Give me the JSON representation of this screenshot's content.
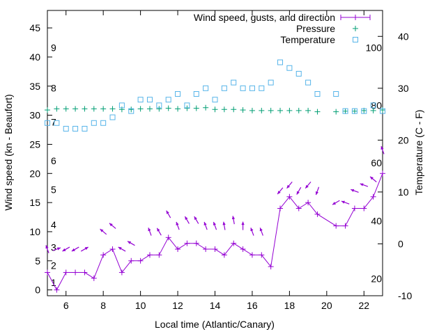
{
  "chart_data": {
    "type": "line",
    "xlabel": "Local time (Atlantic/Canary)",
    "ylabel_left": "Wind speed (kn - Beaufort)",
    "ylabel_right": "Temperature (C - F)",
    "xlim": [
      5,
      23
    ],
    "ylim_left": [
      -1,
      48
    ],
    "ylim_right": [
      -10,
      45
    ],
    "x_ticks": [
      6,
      8,
      10,
      12,
      14,
      16,
      18,
      20,
      22
    ],
    "y_ticks_left": [
      0,
      5,
      10,
      15,
      20,
      25,
      30,
      35,
      40,
      45
    ],
    "y_ticks_right": [
      -10,
      0,
      10,
      20,
      30,
      40
    ],
    "beaufort_labels": [
      {
        "label": "1",
        "value": 1.3
      },
      {
        "label": "2",
        "value": 4.2
      },
      {
        "label": "3",
        "value": 7.3
      },
      {
        "label": "4",
        "value": 11.2
      },
      {
        "label": "5",
        "value": 17.2
      },
      {
        "label": "6",
        "value": 22.2
      },
      {
        "label": "7",
        "value": 28.8
      },
      {
        "label": "8",
        "value": 34.7
      },
      {
        "label": "9",
        "value": 41.6
      }
    ],
    "fahrenheit_labels": [
      {
        "label": "20",
        "value": -6.7
      },
      {
        "label": "40",
        "value": 4.4
      },
      {
        "label": "60",
        "value": 15.6
      },
      {
        "label": "80",
        "value": 26.7
      },
      {
        "label": "100",
        "value": 37.8
      }
    ],
    "grid": false,
    "legend_position": "top-right",
    "series": [
      {
        "name": "Wind speed, gusts, and direction",
        "color": "#9400d3",
        "x": [
          5,
          5.5,
          6,
          6.5,
          7,
          7.5,
          8,
          8.5,
          9,
          9.5,
          10,
          10.5,
          11,
          11.5,
          12,
          12.5,
          13,
          13.5,
          14,
          14.5,
          15,
          15.5,
          16,
          16.5,
          17,
          17.5,
          18,
          18.5,
          19,
          19.5,
          20.5,
          21,
          21.5,
          22,
          22.5,
          23
        ],
        "values": [
          3,
          0,
          3,
          3,
          3,
          2,
          6,
          7,
          3,
          5,
          5,
          6,
          6,
          9,
          7,
          8,
          8,
          7,
          7,
          6,
          8,
          7,
          6,
          6,
          4,
          14,
          16,
          14,
          15,
          13,
          11,
          11,
          14,
          14,
          16,
          20
        ]
      },
      {
        "name": "Pressure",
        "color": "#009e73",
        "x": [
          5,
          5.5,
          6,
          6.5,
          7,
          7.5,
          8,
          8.5,
          9,
          9.5,
          10,
          10.5,
          11,
          11.5,
          12,
          12.5,
          13,
          13.5,
          14,
          14.5,
          15,
          15.5,
          16,
          16.5,
          17,
          17.5,
          18,
          18.5,
          19,
          19.5,
          20.5,
          21,
          21.5,
          22,
          22.5,
          23
        ],
        "values": [
          30.9,
          31.1,
          31.1,
          31.1,
          31.1,
          31.1,
          31.1,
          31.1,
          31.0,
          31.0,
          31.1,
          31.1,
          31.1,
          31.2,
          31.1,
          31.2,
          31.2,
          31.3,
          31.0,
          31.0,
          31.0,
          30.9,
          30.8,
          30.8,
          30.8,
          30.8,
          30.8,
          30.8,
          30.8,
          30.6,
          30.6,
          30.7,
          30.7,
          30.8,
          30.8,
          30.9
        ]
      },
      {
        "name": "Temperature",
        "color": "#56b4e9",
        "x": [
          5,
          5.5,
          6,
          6.5,
          7,
          7.5,
          8,
          8.5,
          9,
          9.5,
          10,
          10.5,
          11,
          11.5,
          12,
          12.5,
          13,
          13.5,
          14,
          14.5,
          15,
          15.5,
          16,
          16.5,
          17,
          17.5,
          18,
          18.5,
          19,
          19.5,
          20.5,
          21,
          21.5,
          22,
          22.5,
          23
        ],
        "values": [
          23.3,
          23.3,
          22.2,
          22.2,
          22.2,
          23.3,
          23.3,
          24.4,
          26.7,
          25.6,
          27.8,
          27.8,
          26.7,
          27.8,
          28.9,
          26.7,
          28.9,
          30.0,
          27.8,
          30.0,
          31.1,
          30.0,
          30.0,
          30.0,
          31.1,
          35.0,
          33.9,
          32.8,
          31.1,
          28.9,
          28.9,
          25.6,
          25.6,
          25.6,
          26.7,
          25.6
        ]
      }
    ],
    "wind_arrows": {
      "x": [
        5,
        5.5,
        6,
        6.5,
        7,
        8,
        8.5,
        9,
        9.5,
        10.5,
        11,
        11.5,
        12,
        12.5,
        13,
        13.5,
        14,
        14.5,
        15,
        15.5,
        16,
        16.5,
        17.5,
        18,
        18.5,
        19,
        19.5,
        20.5,
        21,
        21.5,
        22,
        22.5,
        23
      ],
      "y": [
        7,
        7,
        7,
        7,
        7,
        10,
        11,
        7,
        8,
        10,
        10,
        13,
        11,
        12,
        12,
        11,
        11,
        11,
        12,
        11,
        10,
        10,
        17,
        18,
        17,
        18,
        17,
        15,
        15,
        17,
        18,
        19,
        24
      ],
      "direction_deg": [
        200,
        110,
        300,
        300,
        120,
        230,
        230,
        240,
        240,
        200,
        210,
        210,
        200,
        210,
        210,
        200,
        200,
        190,
        190,
        180,
        200,
        200,
        320,
        320,
        330,
        320,
        340,
        300,
        250,
        250,
        250,
        230,
        200
      ]
    }
  }
}
